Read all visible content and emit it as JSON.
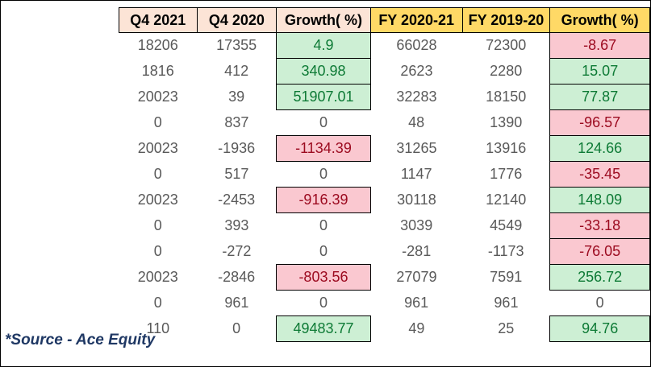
{
  "chart_data": {
    "type": "table",
    "columns": [
      "Q4 2021",
      "Q4 2020",
      "Growth( %)",
      "FY 2020-21",
      "FY 2019-20",
      "Growth( %)"
    ],
    "quarter_header_columns": [
      0,
      1,
      2
    ],
    "fiscal_year_header_columns": [
      3,
      4,
      5
    ],
    "growth_columns": [
      2,
      5
    ],
    "rows": [
      [
        18206,
        17355,
        4.9,
        66028,
        72300,
        -8.67
      ],
      [
        1816,
        412,
        340.98,
        2623,
        2280,
        15.07
      ],
      [
        20023,
        39,
        51907.01,
        32283,
        18150,
        77.87
      ],
      [
        0,
        837,
        0,
        48,
        1390,
        -96.57
      ],
      [
        20023,
        -1936,
        -1134.39,
        31265,
        13916,
        124.66
      ],
      [
        0,
        517,
        0,
        1147,
        1776,
        -35.45
      ],
      [
        20023,
        -2453,
        -916.39,
        30118,
        12140,
        148.09
      ],
      [
        0,
        393,
        0,
        3039,
        4549,
        -33.18
      ],
      [
        0,
        -272,
        0,
        -281,
        -1173,
        -76.05
      ],
      [
        20023,
        -2846,
        -803.56,
        27079,
        7591,
        256.72
      ],
      [
        0,
        961,
        0,
        961,
        961,
        0
      ],
      [
        110,
        0,
        49483.77,
        49,
        25,
        94.76
      ]
    ],
    "source_note": "*Source - Ace Equity"
  },
  "colors": {
    "header_quarter_bg": "#FCE4D6",
    "header_fiscal_year_bg": "#FFD966",
    "growth_positive_bg": "#CDEFD4",
    "growth_positive_text": "#0D7A35",
    "growth_negative_bg": "#FAC8D0",
    "growth_negative_text": "#9C0B20",
    "number_text": "#595959",
    "header_text": "#000000",
    "source_text": "#1F3864",
    "border": "#000000"
  }
}
